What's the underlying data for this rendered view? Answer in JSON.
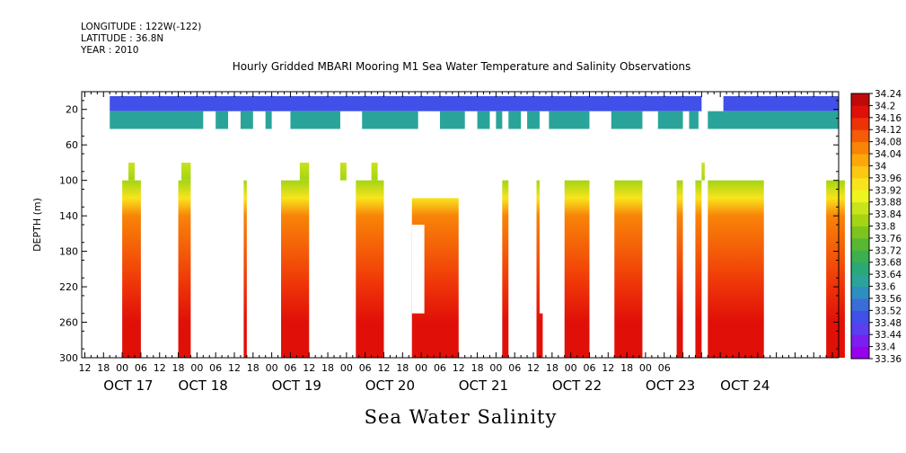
{
  "header": {
    "longitude": "LONGITUDE : 122W(-122)",
    "latitude": "LATITUDE : 36.8N",
    "year": "YEAR : 2010"
  },
  "footer": {
    "title": "Sea Water Salinity"
  },
  "chart_data": {
    "type": "heatmap",
    "title": "Hourly Gridded MBARI Mooring M1 Sea Water Temperature and Salinity Observations",
    "xlabel": "",
    "ylabel": "DEPTH (m)",
    "variable": "Sea Water Salinity",
    "x_range_hours": [
      -13,
      204
    ],
    "x_reference": "OCT 17 00",
    "ylim": [
      300,
      0
    ],
    "y_ticks": [
      20,
      60,
      100,
      140,
      180,
      220,
      260,
      300
    ],
    "hour_tick_labels": [
      "12",
      "18",
      "00",
      "06",
      "12",
      "18",
      "00",
      "06",
      "12",
      "18",
      "00",
      "06",
      "12",
      "18",
      "00",
      "06",
      "12",
      "18",
      "00",
      "06",
      "12",
      "18",
      "00",
      "06",
      "12",
      "18",
      "00",
      "06",
      "12",
      "18",
      "00",
      "06"
    ],
    "hour_ticks_start": 12,
    "date_labels": [
      "OCT 17",
      "OCT 18",
      "OCT 19",
      "OCT 20",
      "OCT 21",
      "OCT 22",
      "OCT 23",
      "OCT 24"
    ],
    "date_label_hours": [
      -6,
      18,
      48,
      78,
      108,
      138,
      168,
      192
    ],
    "colorbar": {
      "levels": [
        "33.36",
        "33.4",
        "33.44",
        "33.48",
        "33.52",
        "33.56",
        "33.6",
        "33.64",
        "33.68",
        "33.72",
        "33.76",
        "33.8",
        "33.84",
        "33.88",
        "33.92",
        "33.96",
        "34",
        "34.04",
        "34.08",
        "34.12",
        "34.16",
        "34.2",
        "34.24"
      ],
      "colors": [
        "#9900ee",
        "#7a1ff0",
        "#5a3ef0",
        "#4050e8",
        "#3a6ed6",
        "#2f8ec0",
        "#2aa49a",
        "#2aa878",
        "#3cb050",
        "#58b832",
        "#7ec41e",
        "#a4d414",
        "#c8e41a",
        "#eef41e",
        "#f8e41c",
        "#fcc812",
        "#fca80a",
        "#f88408",
        "#f45c08",
        "#ee3208",
        "#e01008",
        "#c00a0a",
        "#960404"
      ]
    },
    "depth_profile": [
      {
        "depth": 10,
        "salinity": 33.5
      },
      {
        "depth": 30,
        "salinity": 33.62
      },
      {
        "depth": 80,
        "salinity": 33.86
      },
      {
        "depth": 100,
        "salinity": 33.84
      },
      {
        "depth": 120,
        "salinity": 33.94
      },
      {
        "depth": 140,
        "salinity": 34.05
      },
      {
        "depth": 180,
        "salinity": 34.11
      },
      {
        "depth": 220,
        "salinity": 34.14
      },
      {
        "depth": 260,
        "salinity": 34.2
      },
      {
        "depth": 300,
        "salinity": 34.17
      }
    ],
    "surface_bin_depths": [
      10,
      30
    ],
    "surface_top_gaps_hours": [
      [
        -13,
        -4
      ],
      [
        186,
        193
      ]
    ],
    "surface_bottom_gaps_hours": [
      [
        -13,
        -4
      ],
      [
        26,
        30
      ],
      [
        34,
        38
      ],
      [
        42,
        46
      ],
      [
        48,
        54
      ],
      [
        70,
        77
      ],
      [
        95,
        102
      ],
      [
        110,
        114
      ],
      [
        118,
        120
      ],
      [
        122,
        124
      ],
      [
        128,
        130
      ],
      [
        134,
        137
      ],
      [
        150,
        157
      ],
      [
        167,
        172
      ],
      [
        180,
        182
      ],
      [
        185,
        188
      ]
    ],
    "deep_segments_hours": [
      {
        "start": 0,
        "end": 6,
        "top": 100
      },
      {
        "start": 18,
        "end": 22,
        "top": 100
      },
      {
        "start": 39,
        "end": 40,
        "top": 100
      },
      {
        "start": 51,
        "end": 60,
        "top": 100
      },
      {
        "start": 75,
        "end": 84,
        "top": 100
      },
      {
        "start": 93,
        "end": 108,
        "top": 120
      },
      {
        "start": 122,
        "end": 124,
        "top": 100
      },
      {
        "start": 133,
        "end": 135,
        "top": 100
      },
      {
        "start": 142,
        "end": 150,
        "top": 100
      },
      {
        "start": 158,
        "end": 167,
        "top": 100
      },
      {
        "start": 178,
        "end": 180,
        "top": 100
      },
      {
        "start": 184,
        "end": 186,
        "top": 100
      },
      {
        "start": 188,
        "end": 206,
        "top": 100
      },
      {
        "start": 226,
        "end": 232,
        "top": 100
      }
    ],
    "deep_extra_top_hours": [
      {
        "start": 2,
        "end": 4,
        "top": 80
      },
      {
        "start": 19,
        "end": 22,
        "top": 80
      },
      {
        "start": 57,
        "end": 60,
        "top": 80
      },
      {
        "start": 70,
        "end": 72,
        "top": 80
      },
      {
        "start": 80,
        "end": 82,
        "top": 80
      },
      {
        "start": 186,
        "end": 187,
        "top": 80
      }
    ],
    "deep_notch_hours": [
      {
        "start": 93,
        "end": 97,
        "from": 150,
        "to": 250
      },
      {
        "start": 134,
        "end": 138,
        "from": 100,
        "to": 250
      }
    ]
  }
}
